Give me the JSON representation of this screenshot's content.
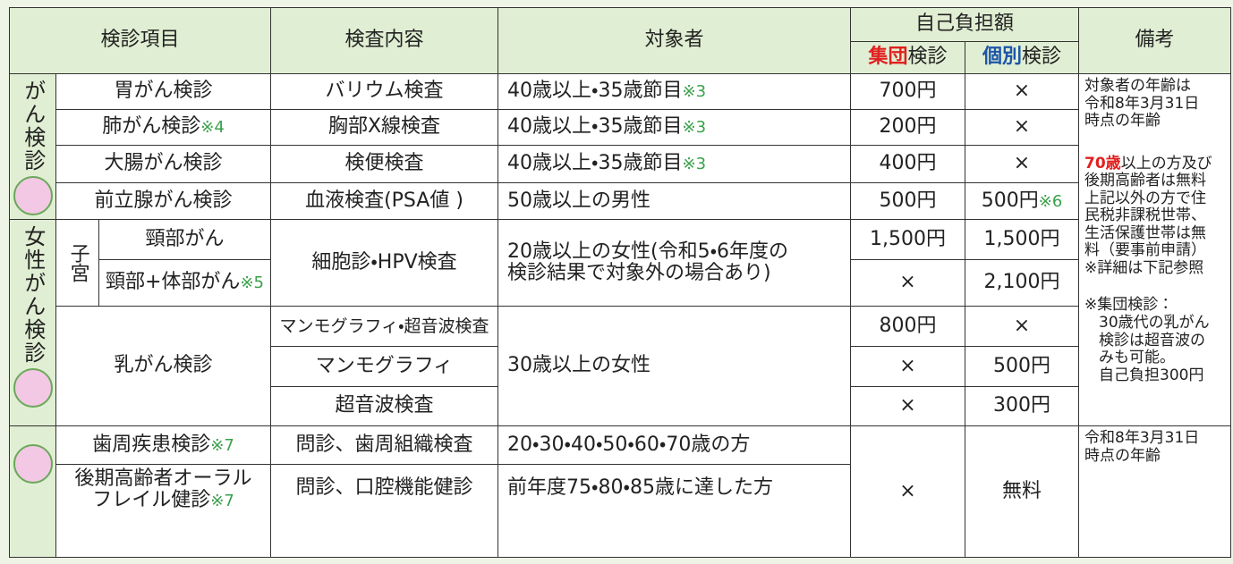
{
  "header": {
    "item": "検診項目",
    "content": "検査内容",
    "target": "対象者",
    "cost": "自己負担額",
    "group_a": "集団",
    "group_b": "検診",
    "indiv_a": "個別",
    "indiv_b": "検診",
    "remarks": "備考"
  },
  "groups": [
    "がん検診",
    "女性がん検診"
  ],
  "uterus": "子宮",
  "rows": [
    {
      "item": "胃がん検診",
      "content": "バリウム検査",
      "target": "40歳以上・35歳節目",
      "target_note": "※3",
      "group": "700円",
      "individual": "×"
    },
    {
      "item": "肺がん検診",
      "item_note": "※4",
      "content": "胸部X線検査",
      "target": "40歳以上・35歳節目",
      "target_note": "※3",
      "group": "200円",
      "individual": "×"
    },
    {
      "item": "大腸がん検診",
      "content": "検便検査",
      "target": "40歳以上・35歳節目",
      "target_note": "※3",
      "group": "400円",
      "individual": "×"
    },
    {
      "item": "前立腺がん検診",
      "content": "血液検査(PSA値 )",
      "target": "50歳以上の男性",
      "group": "500円",
      "individual": "500円",
      "individual_note": "※6"
    },
    {
      "item": "頸部がん",
      "content": "細胞診・HPV検査",
      "target": [
        "20歳以上の女性(令和5・6年度の",
        "検診結果で対象外の場合あり)"
      ],
      "group": "1,500円",
      "individual": "1,500円"
    },
    {
      "item": "頸部+体部がん",
      "item_note": "※5",
      "group": "×",
      "individual": "2,100円"
    },
    {
      "item": "乳がん検診",
      "content": "マンモグラフィ・超音波検査",
      "target": "30歳以上の女性",
      "group": "800円",
      "individual": "×"
    },
    {
      "content": "マンモグラフィ",
      "group": "×",
      "individual": "500円"
    },
    {
      "content": "超音波検査",
      "group": "×",
      "individual": "300円"
    },
    {
      "item": "歯周疾患検診",
      "item_note": "※7",
      "content": "問診、歯周組織検査",
      "target": "20・30・40・50・60・70歳の方",
      "group": "×",
      "individual": "無料"
    },
    {
      "item": [
        "後期高齢者オーラル",
        "フレイル健診"
      ],
      "item_note": "※7",
      "content": "問診、口腔機能健診",
      "target": "前年度75・80・85歳に達した方"
    }
  ],
  "remarks": {
    "age": [
      "対象者の年齢は",
      "令和8年3月31日",
      "時点の年齢"
    ],
    "free_red": "70歳",
    "free": [
      "以上の方及び",
      "後期高齢者は無料",
      "上記以外の方で住",
      "民税非課税世帯、",
      "生活保護世帯は無",
      "料（要事前申請）",
      "※詳細は下記参照"
    ],
    "group_note": [
      "※集団検診：",
      "30歳代の乳がん",
      "検診は超音波の",
      "みも可能。",
      "自己負担300円"
    ],
    "dental": [
      "令和8年3月31日",
      "時点の年齢"
    ]
  }
}
